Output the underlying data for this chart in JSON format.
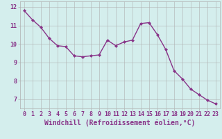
{
  "x": [
    0,
    1,
    2,
    3,
    4,
    5,
    6,
    7,
    8,
    9,
    10,
    11,
    12,
    13,
    14,
    15,
    16,
    17,
    18,
    19,
    20,
    21,
    22,
    23
  ],
  "y": [
    11.8,
    11.3,
    10.9,
    10.3,
    9.9,
    9.85,
    9.35,
    9.3,
    9.35,
    9.4,
    10.2,
    9.9,
    10.1,
    10.2,
    11.1,
    11.15,
    10.5,
    9.7,
    8.55,
    8.1,
    7.55,
    7.25,
    6.95,
    6.75
  ],
  "line_color": "#883388",
  "marker": "D",
  "marker_size": 2,
  "background_color": "#d4eeed",
  "grid_color": "#b0b0b0",
  "xlabel": "Windchill (Refroidissement éolien,°C)",
  "ylim": [
    6.5,
    12.3
  ],
  "xlim": [
    -0.5,
    23.5
  ],
  "yticks": [
    7,
    8,
    9,
    10,
    11,
    12
  ],
  "xticks": [
    0,
    1,
    2,
    3,
    4,
    5,
    6,
    7,
    8,
    9,
    10,
    11,
    12,
    13,
    14,
    15,
    16,
    17,
    18,
    19,
    20,
    21,
    22,
    23
  ],
  "tick_label_fontsize": 6.0,
  "xlabel_fontsize": 7.0,
  "line_width": 1.0
}
